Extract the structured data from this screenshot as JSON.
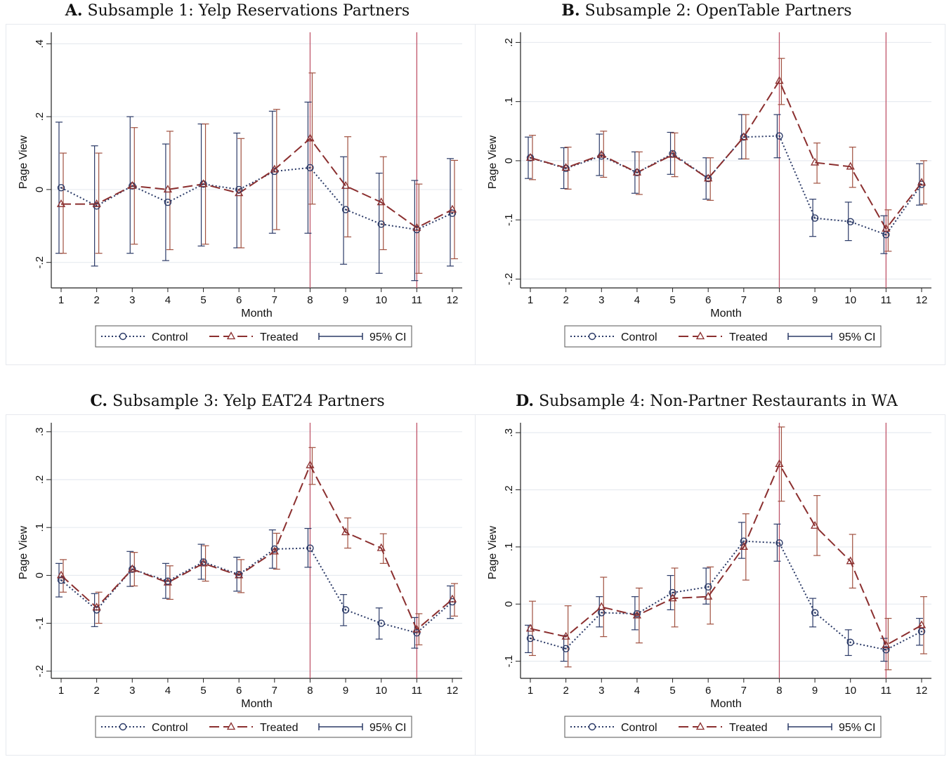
{
  "chart_data": [
    {
      "type": "line",
      "panel_letter": "A.",
      "title": "Subsample 1: Yelp Reservations Partners",
      "xlabel": "Month",
      "ylabel": "Page View",
      "x": [
        1,
        2,
        3,
        4,
        5,
        6,
        7,
        8,
        9,
        10,
        11,
        12
      ],
      "ylim": [
        -0.27,
        0.42
      ],
      "yticks": [
        -0.2,
        0,
        0.2,
        0.4
      ],
      "ytick_labels": [
        "-.2",
        "0",
        ".2",
        ".4"
      ],
      "vlines": [
        8,
        11
      ],
      "series": [
        {
          "name": "Control",
          "values": [
            0.005,
            -0.045,
            0.01,
            -0.035,
            0.015,
            0,
            0.05,
            0.06,
            -0.055,
            -0.095,
            -0.11,
            -0.065
          ],
          "ci_low": [
            -0.175,
            -0.21,
            -0.175,
            -0.195,
            -0.155,
            -0.16,
            -0.12,
            -0.12,
            -0.205,
            -0.23,
            -0.25,
            -0.21
          ],
          "ci_high": [
            0.185,
            0.12,
            0.2,
            0.125,
            0.18,
            0.155,
            0.215,
            0.24,
            0.09,
            0.045,
            0.025,
            0.085
          ]
        },
        {
          "name": "Treated",
          "values": [
            -0.04,
            -0.04,
            0.01,
            0,
            0.015,
            -0.01,
            0.055,
            0.14,
            0.01,
            -0.035,
            -0.105,
            -0.055
          ],
          "ci_low": [
            -0.175,
            -0.175,
            -0.15,
            -0.165,
            -0.15,
            -0.16,
            -0.11,
            -0.04,
            -0.13,
            -0.165,
            -0.23,
            -0.19
          ],
          "ci_high": [
            0.1,
            0.1,
            0.17,
            0.16,
            0.18,
            0.14,
            0.22,
            0.32,
            0.145,
            0.09,
            0.015,
            0.08
          ]
        }
      ]
    },
    {
      "type": "line",
      "panel_letter": "B.",
      "title": "Subsample 2: OpenTable Partners",
      "xlabel": "Month",
      "ylabel": "Page View",
      "x": [
        1,
        2,
        3,
        4,
        5,
        6,
        7,
        8,
        9,
        10,
        11,
        12
      ],
      "ylim": [
        -0.215,
        0.21
      ],
      "yticks": [
        -0.2,
        -0.1,
        0,
        0.1,
        0.2
      ],
      "ytick_labels": [
        "-.2",
        "-.1",
        "0",
        ".1",
        ".2"
      ],
      "vlines": [
        8,
        11
      ],
      "series": [
        {
          "name": "Control",
          "values": [
            0.005,
            -0.013,
            0.008,
            -0.02,
            0.012,
            -0.03,
            0.04,
            0.042,
            -0.097,
            -0.103,
            -0.125,
            -0.04
          ],
          "ci_low": [
            -0.03,
            -0.047,
            -0.025,
            -0.055,
            -0.023,
            -0.065,
            0.003,
            0.005,
            -0.128,
            -0.135,
            -0.157,
            -0.075
          ],
          "ci_high": [
            0.04,
            0.022,
            0.045,
            0.015,
            0.048,
            0.005,
            0.078,
            0.078,
            -0.065,
            -0.07,
            -0.093,
            -0.005
          ]
        },
        {
          "name": "Treated",
          "values": [
            0.005,
            -0.012,
            0.01,
            -0.02,
            0.01,
            -0.03,
            0.04,
            0.135,
            -0.003,
            -0.01,
            -0.115,
            -0.037
          ],
          "ci_low": [
            -0.032,
            -0.048,
            -0.028,
            -0.057,
            -0.027,
            -0.067,
            0.003,
            0.095,
            -0.038,
            -0.045,
            -0.153,
            -0.073
          ],
          "ci_high": [
            0.043,
            0.023,
            0.05,
            0.015,
            0.047,
            0.005,
            0.078,
            0.173,
            0.03,
            0.023,
            -0.083,
            0
          ]
        }
      ]
    },
    {
      "type": "line",
      "panel_letter": "C.",
      "title": "Subsample 3: Yelp EAT24 Partners",
      "xlabel": "Month",
      "ylabel": "Page View",
      "x": [
        1,
        2,
        3,
        4,
        5,
        6,
        7,
        8,
        9,
        10,
        11,
        12
      ],
      "ylim": [
        -0.215,
        0.31
      ],
      "yticks": [
        -0.2,
        -0.1,
        0,
        0.1,
        0.2,
        0.3
      ],
      "ytick_labels": [
        "-.2",
        "-.1",
        "0",
        ".1",
        ".2",
        ".3"
      ],
      "vlines": [
        8,
        11
      ],
      "series": [
        {
          "name": "Control",
          "values": [
            -0.01,
            -0.072,
            0.013,
            -0.012,
            0.028,
            0.002,
            0.055,
            0.057,
            -0.072,
            -0.1,
            -0.12,
            -0.055
          ],
          "ci_low": [
            -0.045,
            -0.107,
            -0.023,
            -0.048,
            -0.008,
            -0.033,
            0.015,
            0.017,
            -0.105,
            -0.133,
            -0.152,
            -0.09
          ],
          "ci_high": [
            0.025,
            -0.038,
            0.05,
            0.025,
            0.065,
            0.038,
            0.095,
            0.098,
            -0.04,
            -0.068,
            -0.088,
            -0.022
          ]
        },
        {
          "name": "Treated",
          "values": [
            0,
            -0.067,
            0.013,
            -0.015,
            0.025,
            0,
            0.05,
            0.23,
            0.09,
            0.057,
            -0.113,
            -0.05
          ],
          "ci_low": [
            -0.035,
            -0.1,
            -0.022,
            -0.05,
            -0.012,
            -0.036,
            0.013,
            0.19,
            0.057,
            0.025,
            -0.145,
            -0.085
          ],
          "ci_high": [
            0.033,
            -0.035,
            0.048,
            0.02,
            0.062,
            0.033,
            0.088,
            0.267,
            0.12,
            0.087,
            -0.08,
            -0.017
          ]
        }
      ]
    },
    {
      "type": "line",
      "panel_letter": "D.",
      "title": "Subsample 4: Non-Partner Restaurants in WA",
      "xlabel": "Month",
      "ylabel": "Page View",
      "x": [
        1,
        2,
        3,
        4,
        5,
        6,
        7,
        8,
        9,
        10,
        11,
        12
      ],
      "ylim": [
        -0.13,
        0.31
      ],
      "yticks": [
        -0.1,
        0,
        0.1,
        0.2,
        0.3
      ],
      "ytick_labels": [
        "-.1",
        "0",
        ".1",
        ".2",
        ".3"
      ],
      "vlines": [
        8,
        11
      ],
      "series": [
        {
          "name": "Control",
          "values": [
            -0.06,
            -0.078,
            -0.015,
            -0.017,
            0.02,
            0.03,
            0.11,
            0.107,
            -0.015,
            -0.067,
            -0.08,
            -0.048
          ],
          "ci_low": [
            -0.085,
            -0.1,
            -0.04,
            -0.045,
            -0.01,
            0,
            0.08,
            0.075,
            -0.04,
            -0.09,
            -0.1,
            -0.072
          ],
          "ci_high": [
            -0.037,
            -0.055,
            0.013,
            0.013,
            0.05,
            0.063,
            0.143,
            0.14,
            0.01,
            -0.045,
            -0.06,
            -0.025
          ]
        },
        {
          "name": "Treated",
          "values": [
            -0.043,
            -0.057,
            -0.005,
            -0.02,
            0.01,
            0.013,
            0.1,
            0.245,
            0.137,
            0.075,
            -0.072,
            -0.037
          ],
          "ci_low": [
            -0.09,
            -0.11,
            -0.057,
            -0.068,
            -0.04,
            -0.035,
            0.042,
            0.18,
            0.085,
            0.028,
            -0.115,
            -0.087
          ],
          "ci_high": [
            0.005,
            -0.003,
            0.047,
            0.028,
            0.063,
            0.065,
            0.158,
            0.31,
            0.19,
            0.122,
            -0.025,
            0.013
          ]
        }
      ]
    }
  ],
  "legend": {
    "control": "Control",
    "treated": "Treated",
    "ci": "95% CI"
  },
  "colors": {
    "control": "#2b3a67",
    "treated": "#8b2f2f",
    "vline": "#c0566a",
    "ci_control": "#2b3a67",
    "ci_treated": "#a0503f",
    "grid": "#e7ebf0",
    "legend_border": "#555555"
  }
}
